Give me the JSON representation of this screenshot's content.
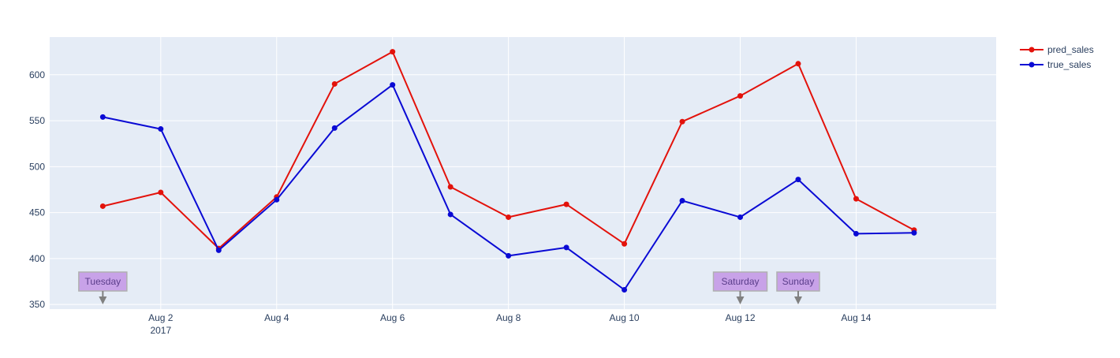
{
  "chart_data": {
    "type": "line",
    "title": "",
    "xlabel": "",
    "ylabel": "",
    "x": [
      "2017-08-01",
      "2017-08-02",
      "2017-08-03",
      "2017-08-04",
      "2017-08-05",
      "2017-08-06",
      "2017-08-07",
      "2017-08-08",
      "2017-08-09",
      "2017-08-10",
      "2017-08-11",
      "2017-08-12",
      "2017-08-13",
      "2017-08-14",
      "2017-08-15"
    ],
    "xlim": [
      "2017-07-31T02:00",
      "2017-08-16T10:00"
    ],
    "ylim": [
      345,
      641
    ],
    "x_ticks": [
      {
        "date": "2017-08-02",
        "label": "Aug 2",
        "sublabel": "2017"
      },
      {
        "date": "2017-08-04",
        "label": "Aug 4"
      },
      {
        "date": "2017-08-06",
        "label": "Aug 6"
      },
      {
        "date": "2017-08-08",
        "label": "Aug 8"
      },
      {
        "date": "2017-08-10",
        "label": "Aug 10"
      },
      {
        "date": "2017-08-12",
        "label": "Aug 12"
      },
      {
        "date": "2017-08-14",
        "label": "Aug 14"
      }
    ],
    "y_ticks": [
      350,
      400,
      450,
      500,
      550,
      600
    ],
    "grid": true,
    "legend_position": "top-right",
    "series": [
      {
        "name": "pred_sales",
        "color": "#e3120b",
        "values": [
          457,
          472,
          411,
          467,
          590,
          625,
          478,
          445,
          459,
          416,
          549,
          577,
          612,
          465,
          431
        ]
      },
      {
        "name": "true_sales",
        "color": "#0a0ad4",
        "values": [
          554,
          541,
          409,
          464,
          542,
          589,
          448,
          403,
          412,
          366,
          463,
          445,
          486,
          427,
          428
        ]
      }
    ],
    "annotations": [
      {
        "date": "2017-08-01",
        "text": "Tuesday"
      },
      {
        "date": "2017-08-12",
        "text": "Saturday"
      },
      {
        "date": "2017-08-13",
        "text": "Sunday"
      }
    ],
    "colors": {
      "plot_bg": "#e5ecf6",
      "grid": "#ffffff",
      "annotation_bg": "#c8a2e8",
      "annotation_border": "#b0b0b0",
      "arrow": "#808080"
    }
  }
}
